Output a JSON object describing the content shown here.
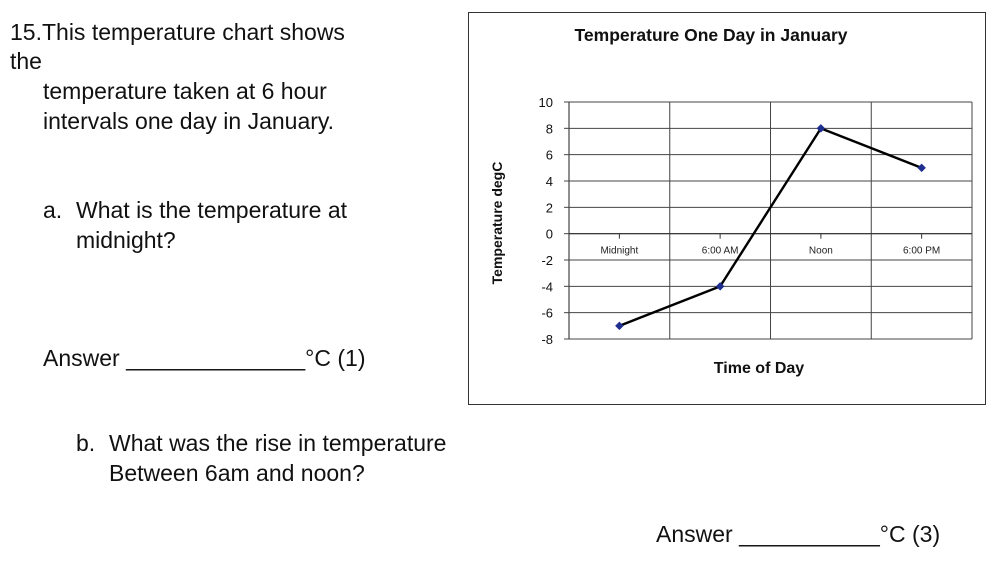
{
  "question": {
    "number_line": "15.This temperature chart shows",
    "wrap_line": "the",
    "line2": "temperature taken at 6 hour",
    "line3": "intervals one day in January.",
    "part_a": {
      "label": "a.",
      "line1": "What is the temperature at",
      "line2": "midnight?"
    },
    "answer_a": "Answer ______________°C (1)",
    "part_b": {
      "label": "b.",
      "line1": "What was the rise in temperature",
      "line2": "Between 6am and noon?"
    },
    "answer_b": "Answer ___________°C (3)"
  },
  "chart_data": {
    "type": "line",
    "title": "Temperature One Day in January",
    "xlabel": "Time of Day",
    "ylabel": "Temperature degC",
    "categories": [
      "Midnight",
      "6:00 AM",
      "Noon",
      "6:00 PM"
    ],
    "series": [
      {
        "values": [
          -7,
          -4,
          8,
          5
        ],
        "color": "#000000",
        "marker_color": "#1f2f8f"
      }
    ],
    "ylim": [
      -8,
      10
    ],
    "yticks": [
      10,
      8,
      6,
      4,
      2,
      0,
      -2,
      -4,
      -6,
      -8
    ],
    "grid": true
  }
}
